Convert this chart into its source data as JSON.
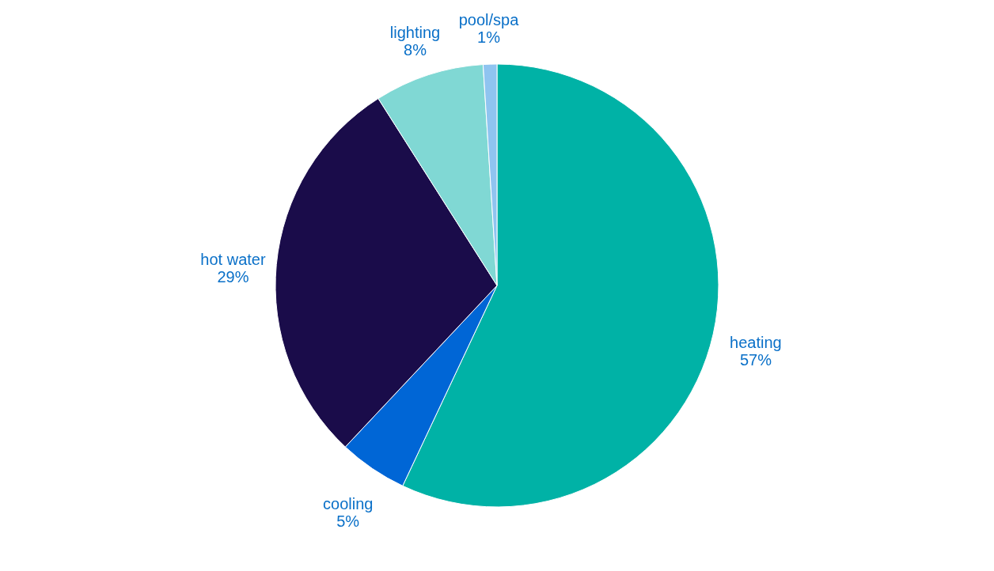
{
  "chart_data": {
    "type": "pie",
    "categories": [
      "heating",
      "cooling",
      "hot water",
      "lighting",
      "pool/spa"
    ],
    "values": [
      57,
      5,
      29,
      8,
      1
    ],
    "colors": [
      "#00b2a6",
      "#0066d6",
      "#1a0c4a",
      "#80d8d4",
      "#8fc4f0"
    ],
    "value_labels": [
      "57%",
      "5%",
      "29%",
      "8%",
      "1%"
    ]
  }
}
